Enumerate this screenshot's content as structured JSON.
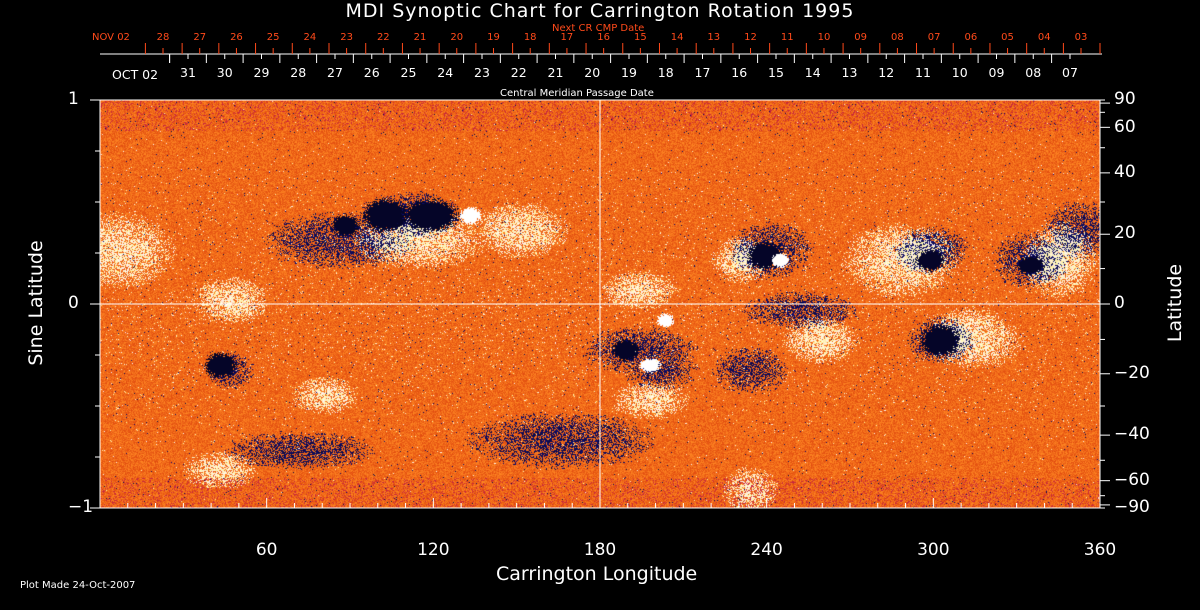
{
  "chart_data": {
    "type": "heatmap",
    "title": "MDI Synoptic Chart for Carrington Rotation 1995",
    "xlabel": "Carrington Longitude",
    "ylabel": "Sine Latitude",
    "y2label": "Latitude",
    "xlim": [
      0,
      360
    ],
    "ylim": [
      -1,
      1
    ],
    "x_ticks": [
      60,
      120,
      180,
      240,
      300,
      360
    ],
    "y_ticks": [
      -1,
      0,
      1
    ],
    "y_tick_labels": [
      "−1",
      "0",
      "1"
    ],
    "y2_ticks": [
      90,
      60,
      40,
      20,
      0,
      -20,
      -40,
      -60,
      -90
    ],
    "y2_tick_labels": [
      "90",
      "60",
      "40",
      "20",
      "0",
      "−20",
      "−40",
      "−60",
      "−90"
    ],
    "top_axis": {
      "label": "Central Meridian Passage Date",
      "start_label": "OCT 02",
      "labels": [
        "31",
        "30",
        "29",
        "28",
        "27",
        "26",
        "25",
        "24",
        "23",
        "22",
        "21",
        "20",
        "19",
        "18",
        "17",
        "16",
        "15",
        "14",
        "13",
        "12",
        "11",
        "10",
        "09",
        "08",
        "07"
      ]
    },
    "top_axis_next": {
      "label": "Next CR CMP Date",
      "start_label": "NOV 02",
      "labels": [
        "28",
        "27",
        "26",
        "25",
        "24",
        "23",
        "22",
        "21",
        "20",
        "19",
        "18",
        "17",
        "16",
        "15",
        "14",
        "13",
        "12",
        "11",
        "10",
        "09",
        "08",
        "07",
        "06",
        "05",
        "04",
        "03"
      ]
    },
    "colors": {
      "background": "#000000",
      "positive": "#ffffff",
      "neutral": "#e8500e",
      "negative": "#0a0a40",
      "next_axis": "#ff4a1a"
    },
    "grid": "center cross lines"
  },
  "footer": "Plot Made 24-Oct-2007"
}
